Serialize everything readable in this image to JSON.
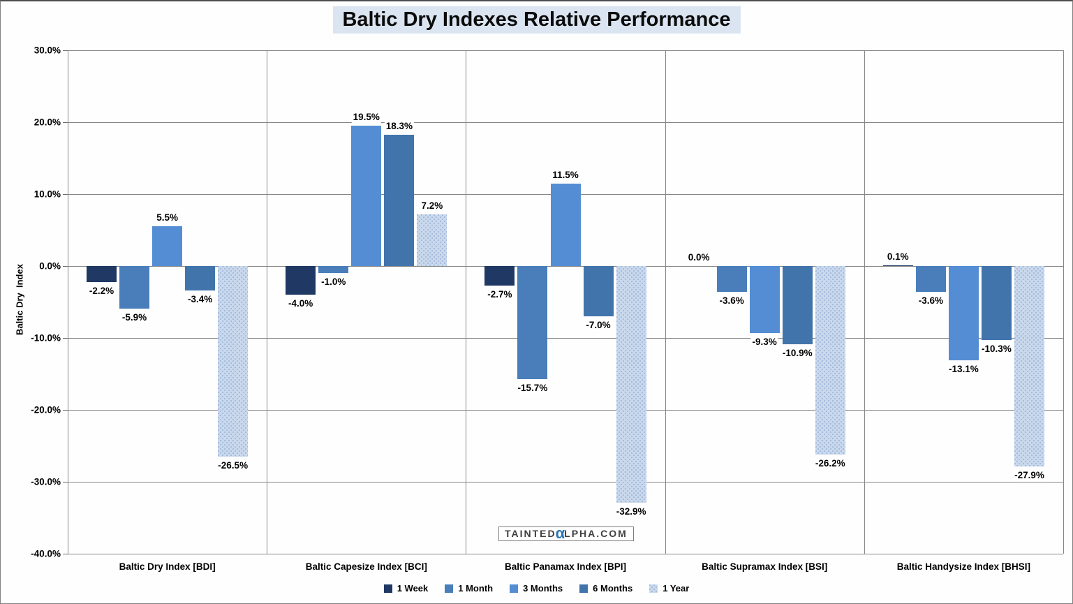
{
  "title": "Baltic Dry Indexes Relative Performance",
  "title_bg_color": "#DBE5F1",
  "gridline_color": "#878787",
  "y_axis": {
    "label": "Baltic Dry  Index",
    "ticks": [
      "30.0%",
      "20.0%",
      "10.0%",
      "0.0%",
      "-10.0%",
      "-20.0%",
      "-30.0%",
      "-40.0%"
    ]
  },
  "watermark": {
    "pre": "TAINTED",
    "alpha": "α",
    "post": "LPHA.COM",
    "alpha_color": "#2E74B5"
  },
  "chart_data": {
    "type": "bar",
    "title": "Baltic Dry Indexes Relative Performance",
    "ylabel": "Baltic Dry  Index",
    "xlabel": "",
    "ylim": [
      -40,
      30
    ],
    "y_tick_step": 10,
    "grid": true,
    "legend_position": "bottom",
    "categories": [
      "Baltic Dry Index [BDI]",
      "Baltic Capesize Index [BCI]",
      "Baltic Panamax Index [BPI]",
      "Baltic Supramax Index [BSI]",
      "Baltic Handysize Index [BHSI]"
    ],
    "series": [
      {
        "name": "1 Week",
        "color": "#1F3864",
        "pattern": "solid",
        "values": [
          -2.2,
          -4.0,
          -2.7,
          0.0,
          0.1
        ]
      },
      {
        "name": "1 Month",
        "color": "#4A7EBB",
        "pattern": "solid",
        "values": [
          -5.9,
          -1.0,
          -15.7,
          -3.6,
          -3.6
        ]
      },
      {
        "name": "3 Months",
        "color": "#548DD4",
        "pattern": "solid",
        "values": [
          5.5,
          19.5,
          11.5,
          -9.3,
          -13.1
        ]
      },
      {
        "name": "6 Months",
        "color": "#4274AC",
        "pattern": "solid",
        "values": [
          -3.4,
          18.3,
          -7.0,
          -10.9,
          -10.3
        ]
      },
      {
        "name": "1 Year",
        "color": "#C9D8EC",
        "pattern": "dots",
        "values": [
          -26.5,
          7.2,
          -32.9,
          -26.2,
          -27.9
        ]
      }
    ],
    "data_labels": {
      "1 Week": [
        "-2.2%",
        "-4.0%",
        "-2.7%",
        "0.0%",
        "0.1%"
      ],
      "1 Month": [
        "-5.9%",
        "-1.0%",
        "-15.7%",
        "-3.6%",
        "-3.6%"
      ],
      "3 Months": [
        "5.5%",
        "19.5%",
        "11.5%",
        "-9.3%",
        "-13.1%"
      ],
      "6 Months": [
        "-3.4%",
        "18.3%",
        "-7.0%",
        "-10.9%",
        "-10.3%"
      ],
      "1 Year": [
        "-26.5%",
        "7.2%",
        "-32.9%",
        "-26.2%",
        "-27.9%"
      ]
    }
  }
}
